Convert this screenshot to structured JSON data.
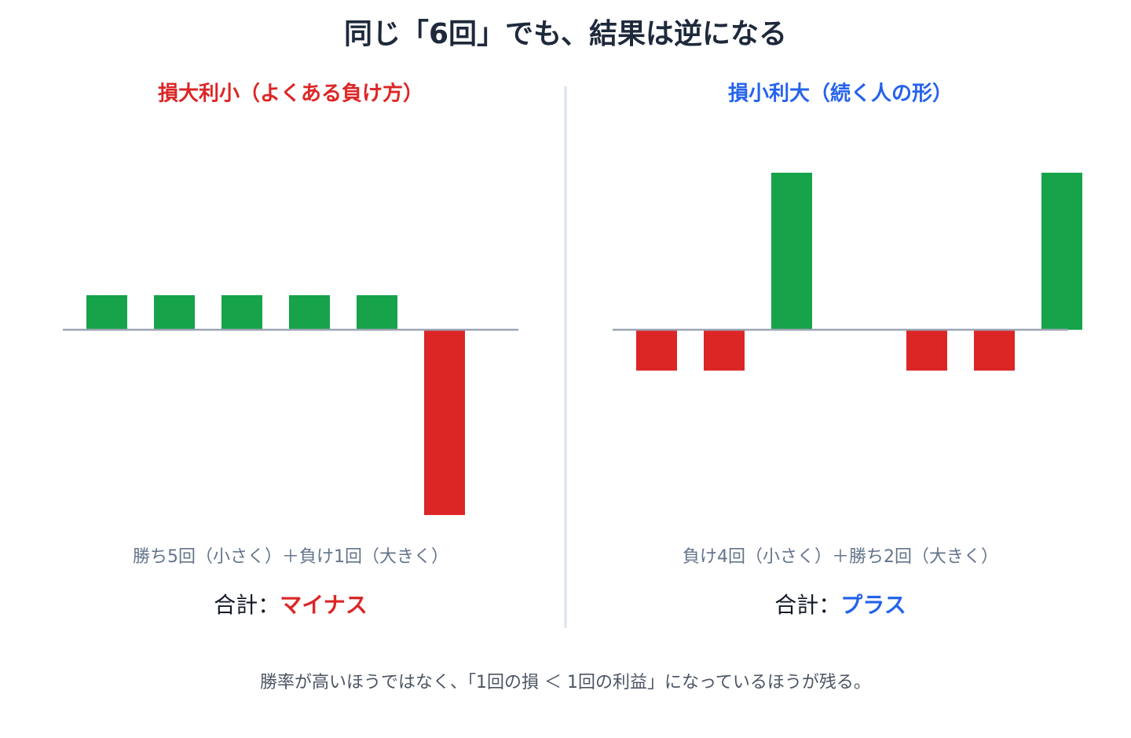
{
  "title": "同じ「6回」でも、結果は逆になる",
  "footer": "勝率が高いほうではなく、「1回の損 ＜ 1回の利益」になっているほうが残る。",
  "chart_data": [
    {
      "type": "bar",
      "title": "損大利小（よくある負け方）",
      "title_color": "#dc2626",
      "values": [
        44,
        44,
        44,
        44,
        44,
        -236
      ],
      "pos_color": "#16a34a",
      "neg_color": "#dc2626",
      "ylim": [
        -250,
        250
      ],
      "caption": "勝ち5回（小さく）＋負け1回（大きく）",
      "total_label": "合計：",
      "total_value": "マイナス"
    },
    {
      "type": "bar",
      "title": "損小利大（続く人の形）",
      "title_color": "#2563eb",
      "values": [
        -52,
        -52,
        200,
        null,
        -52,
        -52,
        200
      ],
      "pos_color": "#16a34a",
      "neg_color": "#dc2626",
      "ylim": [
        -250,
        250
      ],
      "caption": "負け4回（小さく）＋勝ち2回（大きく）",
      "total_label": "合計：",
      "total_value": "プラス"
    }
  ]
}
